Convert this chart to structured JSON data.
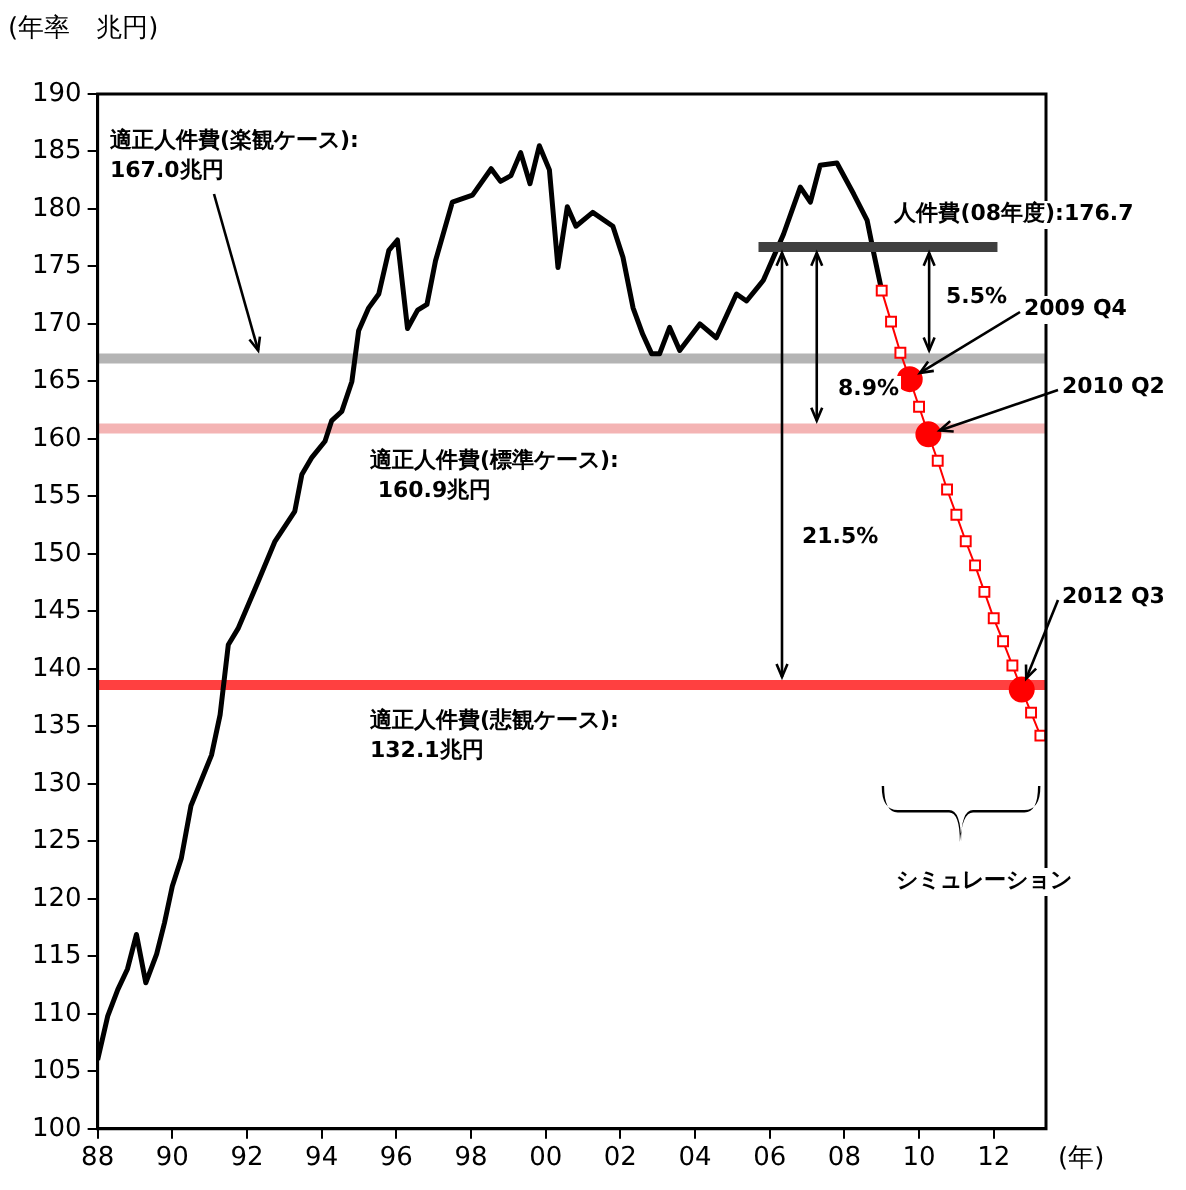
{
  "chart_data": {
    "type": "line",
    "ylabel": "(年率　兆円)",
    "xlabel": "(年)",
    "xlim": [
      1988,
      2013.4
    ],
    "xticks": [
      {
        "value": 1988,
        "label": "88"
      },
      {
        "value": 1990,
        "label": "90"
      },
      {
        "value": 1992,
        "label": "92"
      },
      {
        "value": 1994,
        "label": "94"
      },
      {
        "value": 1996,
        "label": "96"
      },
      {
        "value": 1998,
        "label": "98"
      },
      {
        "value": 2000,
        "label": "00"
      },
      {
        "value": 2002,
        "label": "02"
      },
      {
        "value": 2004,
        "label": "04"
      },
      {
        "value": 2006,
        "label": "06"
      },
      {
        "value": 2008,
        "label": "08"
      },
      {
        "value": 2010,
        "label": "10"
      },
      {
        "value": 2012,
        "label": "12"
      }
    ],
    "ylim": [
      100,
      190
    ],
    "yticks": [
      100,
      105,
      110,
      115,
      120,
      125,
      130,
      135,
      140,
      145,
      150,
      155,
      160,
      165,
      170,
      175,
      180,
      185,
      190
    ],
    "grid": false,
    "legend": false,
    "series": [
      {
        "type": "line",
        "color": "#000000",
        "marker": "none",
        "x": [
          1988.0,
          1988.27,
          1988.54,
          1988.8,
          1989.04,
          1989.29,
          1989.58,
          1989.79,
          1990.0,
          1990.24,
          1990.5,
          1991.05,
          1991.28,
          1991.5,
          1991.76,
          1992.3,
          1992.75,
          1993.28,
          1993.47,
          1993.74,
          1994.09,
          1994.27,
          1994.54,
          1994.81,
          1994.99,
          1995.26,
          1995.53,
          1995.8,
          1996.03,
          1996.3,
          1996.57,
          1996.82,
          1997.05,
          1997.5,
          1998.04,
          1998.54,
          1998.79,
          1999.07,
          1999.33,
          1999.58,
          1999.83,
          2000.1,
          2000.33,
          2000.58,
          2000.81,
          2001.26,
          2001.8,
          2002.07,
          2002.34,
          2002.6,
          2002.84,
          2003.05,
          2003.32,
          2003.59,
          2004.13,
          2004.57,
          2005.11,
          2005.38,
          2005.83,
          2006.37,
          2006.82,
          2007.09,
          2007.35,
          2007.8,
          2008.25,
          2008.61,
          2008.79,
          2009.0
        ],
        "values": [
          106.0,
          109.8,
          112.1,
          113.9,
          116.9,
          112.7,
          115.2,
          117.9,
          121.1,
          123.5,
          128.1,
          132.5,
          136.0,
          142.1,
          143.5,
          147.6,
          151.1,
          153.7,
          156.9,
          158.4,
          159.8,
          161.6,
          162.4,
          165.0,
          169.4,
          171.4,
          172.6,
          176.4,
          177.3,
          169.6,
          171.2,
          171.7,
          175.5,
          180.6,
          181.2,
          183.5,
          182.4,
          182.9,
          184.9,
          182.2,
          185.5,
          183.4,
          174.9,
          180.2,
          178.5,
          179.7,
          178.5,
          175.8,
          171.4,
          169.1,
          167.4,
          167.4,
          169.7,
          167.7,
          170.0,
          168.8,
          172.6,
          172.0,
          173.8,
          177.8,
          181.9,
          180.6,
          183.8,
          184.0,
          181.3,
          179.0,
          176.1,
          172.9
        ]
      },
      {
        "type": "line",
        "color": "#ff0000",
        "marker": "square",
        "x": [
          2009.0,
          2009.25,
          2009.5,
          2009.75,
          2010.0,
          2010.25,
          2010.5,
          2010.75,
          2011.0,
          2011.25,
          2011.5,
          2011.75,
          2012.0,
          2012.25,
          2012.5,
          2012.75,
          2013.0,
          2013.25
        ],
        "values": [
          172.9,
          170.2,
          167.5,
          165.2,
          162.8,
          160.4,
          158.1,
          155.6,
          153.4,
          151.1,
          149.0,
          146.7,
          144.4,
          142.4,
          140.3,
          138.2,
          136.2,
          134.2
        ]
      },
      {
        "type": "scatter",
        "color": "#ff0000",
        "marker": "circle",
        "x": [
          2009.75,
          2010.25,
          2012.75
        ],
        "values": [
          165.2,
          160.4,
          138.2
        ]
      },
      {
        "type": "line",
        "color": "#404040",
        "marker": "none",
        "x": [
          2005.7,
          2012.1
        ],
        "values": [
          176.7,
          176.7
        ]
      }
    ],
    "ref_lines": [
      {
        "axis": "y",
        "value": 167.0,
        "color": "#b4b4b4"
      },
      {
        "axis": "y",
        "value": 160.9,
        "color": "#f4b4b4"
      },
      {
        "axis": "y",
        "value": 138.6,
        "color": "#ff4040"
      }
    ],
    "annotations": [
      {
        "text": "適正人件費(楽観ケース):\n167.0兆円",
        "x": 1992.3,
        "y": 167.0
      },
      "適正人件費(標準ケース):\n 160.9兆円",
      "適正人件費(悲観ケース):\n132.1兆円",
      {
        "text": "人件費(08年度):176.7",
        "x": 2011.0,
        "y": 176.7
      },
      {
        "text": "5.5%",
        "x": 2010.27,
        "y": 167.0
      },
      {
        "text": "8.9%",
        "x": 2007.26,
        "y": 160.9
      },
      "21.5%",
      {
        "text": "2009 Q4",
        "x": 2009.75,
        "y": 165.2
      },
      {
        "text": "2010 Q2",
        "x": 2010.25,
        "y": 160.4
      },
      {
        "text": "2012 Q3",
        "x": 2012.75,
        "y": 138.2
      },
      "シミュレーション"
    ]
  }
}
